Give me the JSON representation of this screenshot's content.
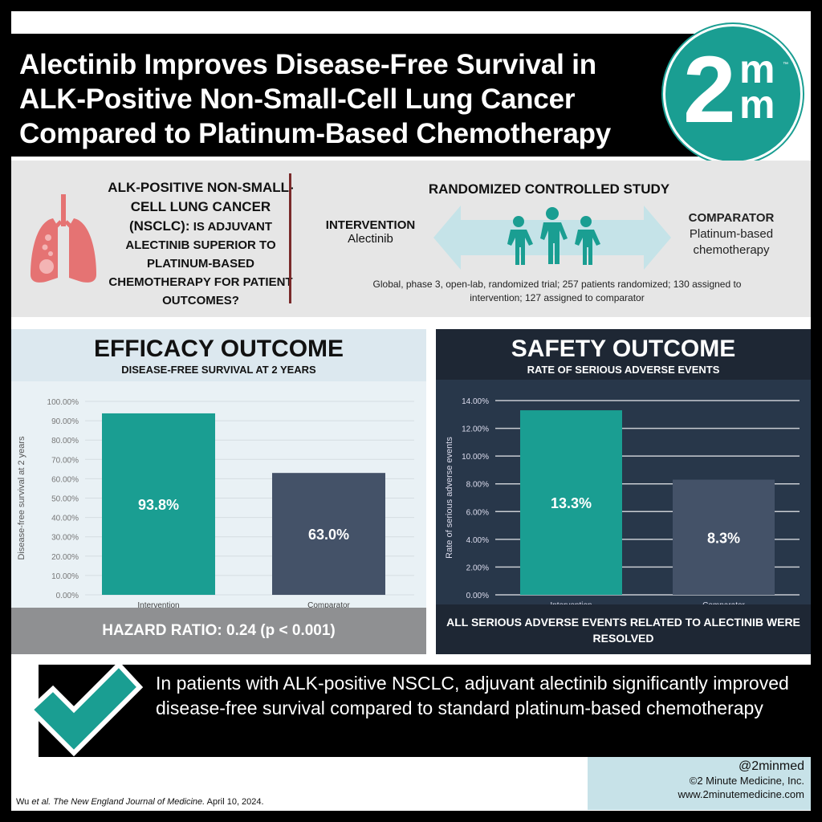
{
  "header": {
    "title_lines": [
      "Alectinib Improves Disease-Free Survival in",
      "ALK-Positive Non-Small-Cell Lung Cancer",
      "Compared to Platinum-Based Chemotherapy"
    ],
    "logo_text": "2mm",
    "logo_tm": "™"
  },
  "question": {
    "bold_part": "ALK-POSITIVE NON-SMALL-CELL LUNG CANCER (NSCLC):",
    "rest": "IS ADJUVANT ALECTINIB SUPERIOR TO PLATINUM-BASED CHEMOTHERAPY FOR PATIENT OUTCOMES?"
  },
  "study": {
    "design_title": "RANDOMIZED CONTROLLED STUDY",
    "intervention_label": "INTERVENTION",
    "intervention": "Alectinib",
    "comparator_label": "COMPARATOR",
    "comparator": "Platinum-based chemotherapy",
    "description": "Global, phase 3, open-lab, randomized trial; 257 patients randomized; 130 assigned to intervention; 127 assigned to comparator"
  },
  "efficacy": {
    "title": "EFFICACY OUTCOME",
    "subtitle": "DISEASE-FREE SURVIVAL AT 2 YEARS",
    "footer": "HAZARD RATIO: 0.24 (p < 0.001)"
  },
  "safety": {
    "title": "SAFETY OUTCOME",
    "subtitle": "RATE OF SERIOUS ADVERSE EVENTS",
    "footer": "ALL SERIOUS ADVERSE EVENTS RELATED TO ALECTINIB WERE RESOLVED"
  },
  "chart_data": [
    {
      "type": "bar",
      "categories": [
        "Intervention",
        "Comparator"
      ],
      "values": [
        93.8,
        63.0
      ],
      "data_labels": [
        "93.8%",
        "63.0%"
      ],
      "ylabel": "Disease-free survival at 2 years",
      "ylim": [
        0,
        100
      ],
      "yticks": [
        "0.00%",
        "10.00%",
        "20.00%",
        "30.00%",
        "40.00%",
        "50.00%",
        "60.00%",
        "70.00%",
        "80.00%",
        "90.00%",
        "100.00%"
      ],
      "grid": true,
      "colors": [
        "#1a9e92",
        "#445268"
      ]
    },
    {
      "type": "bar",
      "categories": [
        "Intervention",
        "Comparator"
      ],
      "values": [
        13.3,
        8.3
      ],
      "data_labels": [
        "13.3%",
        "8.3%"
      ],
      "ylabel": "Rate of serious adverse events",
      "ylim": [
        0,
        14
      ],
      "yticks": [
        "0.00%",
        "2.00%",
        "4.00%",
        "6.00%",
        "8.00%",
        "10.00%",
        "12.00%",
        "14.00%"
      ],
      "grid": true,
      "colors": [
        "#1a9e92",
        "#445268"
      ]
    }
  ],
  "conclusion": "In patients with ALK-positive NSCLC, adjuvant alectinib significantly improved disease-free survival compared to standard platinum-based chemotherapy",
  "footer": {
    "handle": "@2minmed",
    "copyright": "©2 Minute Medicine, Inc.",
    "website": "www.2minutemedicine.com",
    "citation_authors": "Wu ",
    "citation_etal": "et al. The New England Journal of Medicine.",
    "citation_date": " April 10, 2024."
  },
  "colors": {
    "teal": "#1a9e92",
    "navy": "#1e2734",
    "lung": "#e57373"
  }
}
